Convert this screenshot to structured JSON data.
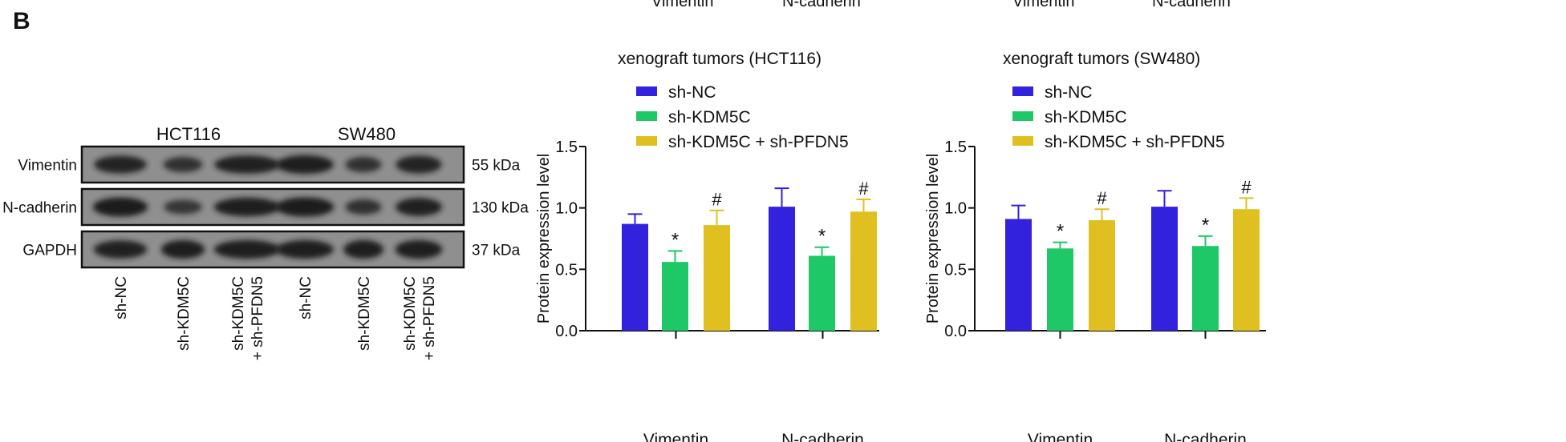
{
  "panel_label": "B",
  "top_cut_labels": [
    "Vimentin",
    "N-cadherin",
    "Vimentin",
    "N-cadherin"
  ],
  "western_blot": {
    "cell_lines": [
      "HCT116",
      "SW480"
    ],
    "rows": [
      {
        "protein": "Vimentin",
        "size": "55 kDa",
        "intensity": [
          0.85,
          0.6,
          0.9,
          0.95,
          0.6,
          0.85
        ]
      },
      {
        "protein": "N-cadherin",
        "size": "130 kDa",
        "intensity": [
          1.0,
          0.5,
          0.95,
          1.0,
          0.6,
          0.9
        ]
      },
      {
        "protein": "GAPDH",
        "size": "37 kDa",
        "intensity": [
          0.9,
          0.95,
          0.95,
          0.95,
          0.95,
          0.95
        ]
      }
    ],
    "lanes": [
      [
        "sh-NC"
      ],
      [
        "sh-KDM5C"
      ],
      [
        "sh-KDM5C",
        "+ sh-PFDN5"
      ],
      [
        "sh-NC"
      ],
      [
        "sh-KDM5C"
      ],
      [
        "sh-KDM5C",
        "+ sh-PFDN5"
      ]
    ]
  },
  "colors": {
    "sh-NC": "#3322dd",
    "sh-KDM5C": "#1ec867",
    "sh-KDM5C + sh-PFDN5": "#e0c020"
  },
  "chart_data": [
    {
      "type": "bar",
      "title": "xenograft tumors (HCT116)",
      "ylabel": "Protein expression level",
      "xlabel": "",
      "ylim": [
        0,
        1.5
      ],
      "yticks": [
        "0.0",
        "0.5",
        "1.0",
        "1.5"
      ],
      "categories": [
        "Vimentin",
        "N-cadherin"
      ],
      "legend": "top-left",
      "series": [
        {
          "name": "sh-NC",
          "values": [
            0.87,
            1.01
          ],
          "errors": [
            0.08,
            0.15
          ],
          "annotations": [
            "",
            ""
          ]
        },
        {
          "name": "sh-KDM5C",
          "values": [
            0.56,
            0.61
          ],
          "errors": [
            0.09,
            0.07
          ],
          "annotations": [
            "*",
            "*"
          ]
        },
        {
          "name": "sh-KDM5C + sh-PFDN5",
          "values": [
            0.86,
            0.97
          ],
          "errors": [
            0.12,
            0.1
          ],
          "annotations": [
            "#",
            "#"
          ]
        }
      ]
    },
    {
      "type": "bar",
      "title": "xenograft tumors (SW480)",
      "ylabel": "Protein expression level",
      "xlabel": "",
      "ylim": [
        0,
        1.5
      ],
      "yticks": [
        "0.0",
        "0.5",
        "1.0",
        "1.5"
      ],
      "categories": [
        "Vimentin",
        "N-cadherin"
      ],
      "legend": "top-left",
      "series": [
        {
          "name": "sh-NC",
          "values": [
            0.91,
            1.01
          ],
          "errors": [
            0.11,
            0.13
          ],
          "annotations": [
            "",
            ""
          ]
        },
        {
          "name": "sh-KDM5C",
          "values": [
            0.67,
            0.69
          ],
          "errors": [
            0.05,
            0.08
          ],
          "annotations": [
            "*",
            "*"
          ]
        },
        {
          "name": "sh-KDM5C + sh-PFDN5",
          "values": [
            0.9,
            0.99
          ],
          "errors": [
            0.09,
            0.09
          ],
          "annotations": [
            "#",
            "#"
          ]
        }
      ]
    }
  ]
}
